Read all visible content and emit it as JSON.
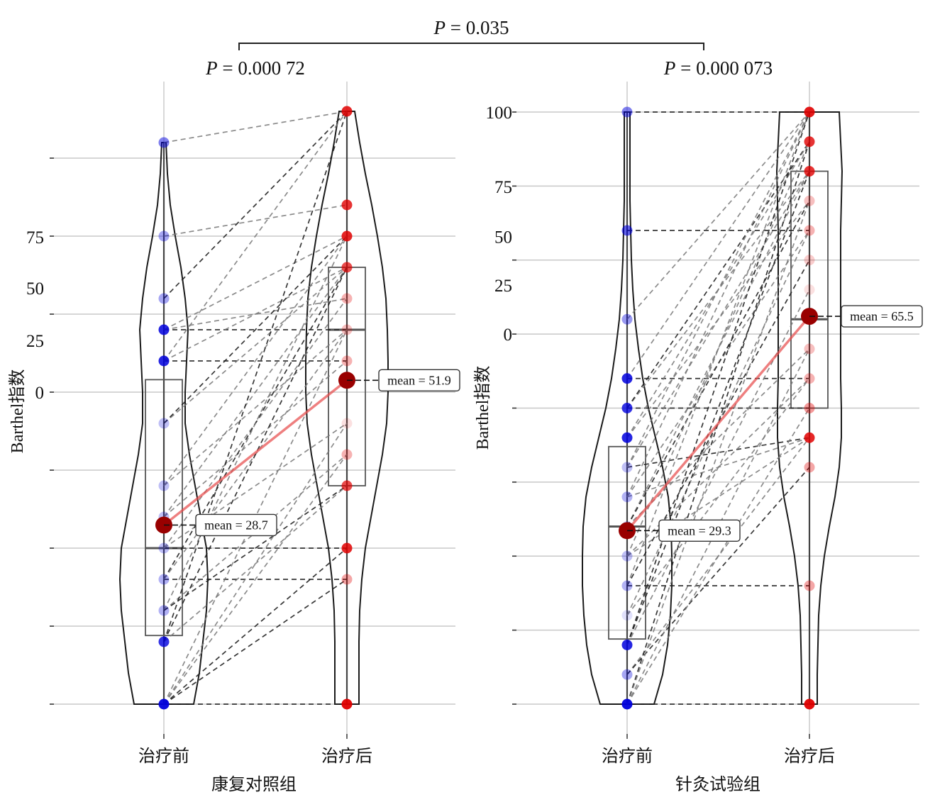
{
  "chart_data": [
    {
      "type": "violin-box-paired",
      "group_label": "康复对照组",
      "ylabel": "Barthel指数",
      "categories": [
        "治疗前",
        "治疗后"
      ],
      "p_value_label": "= 0.000 72",
      "y_tick_labels": [
        {
          "label": "75",
          "at": 74.9
        },
        {
          "label": "50",
          "at": 66.7
        },
        {
          "label": "25",
          "at": 58.3
        },
        {
          "label": "0",
          "at": 50.0
        }
      ],
      "gridlines_at": [
        0,
        12.5,
        25,
        37.5,
        50,
        62.5,
        75,
        87.5
      ],
      "grid": true,
      "before_points": [
        {
          "value": 90,
          "alpha": 0.5
        },
        {
          "value": 75,
          "alpha": 0.35
        },
        {
          "value": 65,
          "alpha": 0.35
        },
        {
          "value": 60,
          "alpha": 0.85
        },
        {
          "value": 55,
          "alpha": 0.85
        },
        {
          "value": 45,
          "alpha": 0.25
        },
        {
          "value": 35,
          "alpha": 0.25
        },
        {
          "value": 30,
          "alpha": 0.25
        },
        {
          "value": 25,
          "alpha": 0.25
        },
        {
          "value": 20,
          "alpha": 0.3
        },
        {
          "value": 15,
          "alpha": 0.3
        },
        {
          "value": 10,
          "alpha": 0.8
        },
        {
          "value": 0,
          "alpha": 0.95
        }
      ],
      "after_points": [
        {
          "value": 95,
          "alpha": 0.85
        },
        {
          "value": 80,
          "alpha": 0.8
        },
        {
          "value": 75,
          "alpha": 0.85
        },
        {
          "value": 70,
          "alpha": 0.7
        },
        {
          "value": 65,
          "alpha": 0.3
        },
        {
          "value": 60,
          "alpha": 0.25
        },
        {
          "value": 55,
          "alpha": 0.3
        },
        {
          "value": 45,
          "alpha": 0.12
        },
        {
          "value": 40,
          "alpha": 0.3
        },
        {
          "value": 35,
          "alpha": 0.7
        },
        {
          "value": 25,
          "alpha": 0.85
        },
        {
          "value": 20,
          "alpha": 0.35
        },
        {
          "value": 0,
          "alpha": 0.95
        }
      ],
      "pairs": [
        [
          90,
          95
        ],
        [
          75,
          80
        ],
        [
          65,
          95
        ],
        [
          60,
          60
        ],
        [
          60,
          65
        ],
        [
          60,
          75
        ],
        [
          55,
          55
        ],
        [
          55,
          70
        ],
        [
          55,
          95
        ],
        [
          45,
          70
        ],
        [
          45,
          75
        ],
        [
          35,
          75
        ],
        [
          35,
          60
        ],
        [
          30,
          70
        ],
        [
          30,
          55
        ],
        [
          25,
          25
        ],
        [
          25,
          65
        ],
        [
          25,
          45
        ],
        [
          20,
          20
        ],
        [
          20,
          70
        ],
        [
          20,
          60
        ],
        [
          15,
          75
        ],
        [
          15,
          40
        ],
        [
          15,
          35
        ],
        [
          10,
          35
        ],
        [
          10,
          70
        ],
        [
          10,
          95
        ],
        [
          0,
          0
        ],
        [
          0,
          20
        ],
        [
          0,
          45
        ],
        [
          0,
          40
        ],
        [
          0,
          25
        ],
        [
          0,
          60
        ]
      ],
      "box_before": {
        "q1": 11,
        "median": 25,
        "q3": 52
      },
      "box_after": {
        "q1": 35,
        "median": 60,
        "q3": 70
      },
      "mean_before": 28.7,
      "mean_after": 51.9,
      "mean_before_label": "mean = 28.7",
      "mean_after_label": "mean = 51.9"
    },
    {
      "type": "violin-box-paired",
      "group_label": "针灸试验组",
      "ylabel": "Barthel指数",
      "categories": [
        "治疗前",
        "治疗后"
      ],
      "p_value_label": "= 0.000 073",
      "y_tick_labels": [
        {
          "label": "100",
          "at": 100
        },
        {
          "label": "75",
          "at": 87.4
        },
        {
          "label": "50",
          "at": 79.0
        },
        {
          "label": "25",
          "at": 70.8
        },
        {
          "label": "0",
          "at": 62.5
        }
      ],
      "gridlines_at": [
        0,
        12.5,
        25,
        37.5,
        50,
        62.5,
        75,
        87.5,
        100
      ],
      "grid": true,
      "before_points": [
        {
          "value": 100,
          "alpha": 0.5
        },
        {
          "value": 80,
          "alpha": 0.6
        },
        {
          "value": 65,
          "alpha": 0.4
        },
        {
          "value": 55,
          "alpha": 0.85
        },
        {
          "value": 50,
          "alpha": 0.8
        },
        {
          "value": 45,
          "alpha": 0.85
        },
        {
          "value": 40,
          "alpha": 0.25
        },
        {
          "value": 35,
          "alpha": 0.3
        },
        {
          "value": 30,
          "alpha": 0.2
        },
        {
          "value": 25,
          "alpha": 0.25
        },
        {
          "value": 20,
          "alpha": 0.3
        },
        {
          "value": 15,
          "alpha": 0.12
        },
        {
          "value": 10,
          "alpha": 0.85
        },
        {
          "value": 5,
          "alpha": 0.35
        },
        {
          "value": 0,
          "alpha": 0.95
        }
      ],
      "after_points": [
        {
          "value": 100,
          "alpha": 0.9
        },
        {
          "value": 95,
          "alpha": 0.8
        },
        {
          "value": 90,
          "alpha": 0.8
        },
        {
          "value": 85,
          "alpha": 0.25
        },
        {
          "value": 80,
          "alpha": 0.3
        },
        {
          "value": 75,
          "alpha": 0.2
        },
        {
          "value": 70,
          "alpha": 0.12
        },
        {
          "value": 60,
          "alpha": 0.25
        },
        {
          "value": 55,
          "alpha": 0.3
        },
        {
          "value": 50,
          "alpha": 0.4
        },
        {
          "value": 45,
          "alpha": 0.85
        },
        {
          "value": 40,
          "alpha": 0.35
        },
        {
          "value": 20,
          "alpha": 0.35
        },
        {
          "value": 0,
          "alpha": 0.95
        }
      ],
      "pairs": [
        [
          100,
          100
        ],
        [
          80,
          80
        ],
        [
          65,
          100
        ],
        [
          55,
          55
        ],
        [
          55,
          100
        ],
        [
          50,
          50
        ],
        [
          50,
          90
        ],
        [
          50,
          95
        ],
        [
          45,
          85
        ],
        [
          45,
          95
        ],
        [
          40,
          45
        ],
        [
          40,
          90
        ],
        [
          40,
          100
        ],
        [
          35,
          80
        ],
        [
          35,
          100
        ],
        [
          35,
          45
        ],
        [
          30,
          90
        ],
        [
          30,
          85
        ],
        [
          30,
          60
        ],
        [
          25,
          95
        ],
        [
          25,
          55
        ],
        [
          25,
          45
        ],
        [
          20,
          20
        ],
        [
          20,
          100
        ],
        [
          20,
          75
        ],
        [
          15,
          80
        ],
        [
          15,
          55
        ],
        [
          10,
          100
        ],
        [
          10,
          90
        ],
        [
          10,
          70
        ],
        [
          5,
          45
        ],
        [
          5,
          40
        ],
        [
          0,
          0
        ],
        [
          0,
          95
        ],
        [
          0,
          85
        ],
        [
          0,
          60
        ],
        [
          0,
          50
        ]
      ],
      "box_before": {
        "q1": 11,
        "median": 30,
        "q3": 43.5
      },
      "box_after": {
        "q1": 50,
        "median": 65,
        "q3": 90
      },
      "mean_before": 29.3,
      "mean_after": 65.5,
      "mean_before_label": "mean = 29.3",
      "mean_after_label": "mean = 65.5"
    }
  ],
  "comparison": {
    "p_value_label": "= 0.035",
    "p_symbol": "P"
  }
}
